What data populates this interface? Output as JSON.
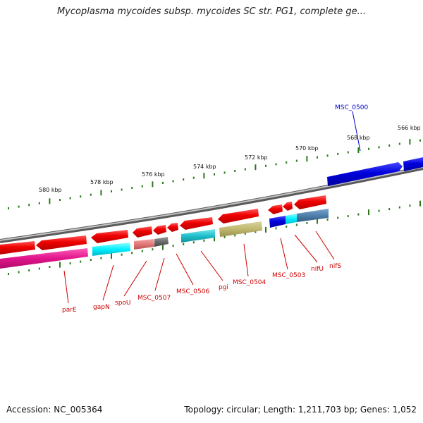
{
  "title": "Mycoplasma mycoides subsp. mycoides SC str. PG1, complete ge...",
  "footer": {
    "accession": "Accession: NC_005364",
    "stats": "Topology: circular; Length: 1,211,703 bp; Genes: 1,052"
  },
  "scale_labels": [
    "580 kbp",
    "578 kbp",
    "576 kbp",
    "574 kbp",
    "572 kbp",
    "570 kbp",
    "568 kbp",
    "566 kbp"
  ],
  "gene_labels": [
    "parE",
    "gapN",
    "spoU",
    "MSC_0507",
    "MSC_0506",
    "pgi",
    "MSC_0504",
    "MSC_0503",
    "nifU",
    "nifS",
    "MSC_0500"
  ],
  "colors": {
    "forward_strand": "#0000dd",
    "reverse_strand": "#ee0000",
    "label_reverse": "#cc0000",
    "label_forward": "#0000cc",
    "tick": "#2a7a1a",
    "backbone": "#8a8a8a"
  }
}
